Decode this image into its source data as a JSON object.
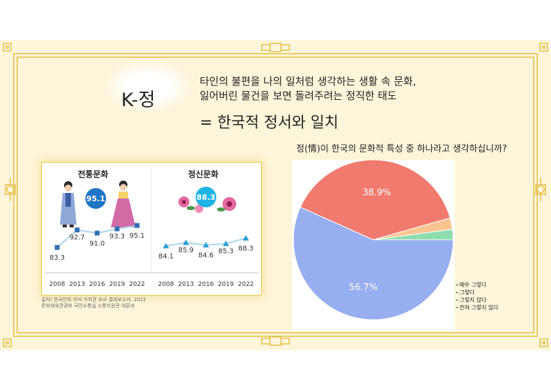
{
  "slide": {
    "title": "K-정",
    "description_line1": "타인의 불편을 나의 일처럼 생각하는 생활 속 문화,",
    "description_line2": "잃어버린 물건을 보면 돌려주려는 정직한 태도",
    "conclusion": "= 한국적 정서와 일치",
    "colors": {
      "background": "#fdf5d9",
      "ornament": "#e4c24c"
    }
  },
  "chart_data": [
    {
      "type": "line",
      "title": "전통문화",
      "badge": "95.1",
      "categories": [
        "2008",
        "2013",
        "2016",
        "2019",
        "2022"
      ],
      "series": [
        {
          "values": [
            83.3,
            92.7,
            91.0,
            93.3,
            95.1
          ],
          "value_labels": [
            "83.3",
            "92.7",
            "91.0",
            "93.3",
            "95.1"
          ],
          "marker": "square",
          "color": "#2f6fb5"
        }
      ]
    },
    {
      "type": "line",
      "title": "정신문화",
      "badge": "88.3",
      "categories": [
        "2008",
        "2013",
        "2016",
        "2019",
        "2022"
      ],
      "series": [
        {
          "values": [
            84.1,
            85.9,
            84.6,
            85.3,
            88.3
          ],
          "value_labels": [
            "84.1",
            "85.9",
            "84.6",
            "85.3",
            "88.3"
          ],
          "marker": "triangle",
          "color": "#2a9fd8"
        }
      ]
    },
    {
      "type": "pie",
      "title": "정(情)이 한국의 문화적 특성 중 하나라고 생각하십니까?",
      "legend_position": "bottom-right",
      "slices": [
        {
          "label": "매우 그렇다",
          "value": 56.7,
          "value_label": "56.7%",
          "color": "#97aef0"
        },
        {
          "label": "그렇다",
          "value": 38.9,
          "value_label": "38.9%",
          "color": "#ef7a6d"
        },
        {
          "label": "그렇지 않다",
          "value": 2.3,
          "value_label": "",
          "color": "#f9c48e"
        },
        {
          "label": "전혀 그렇지 않다",
          "value": 2.1,
          "value_label": "",
          "color": "#8fdcb1"
        }
      ]
    }
  ],
  "source": {
    "line1": "출처) 한국인의 의식·가치관 조사 결과보고서, 2022",
    "line2": "문화체육관광부 국민소통실 소통지원관 여론과"
  }
}
